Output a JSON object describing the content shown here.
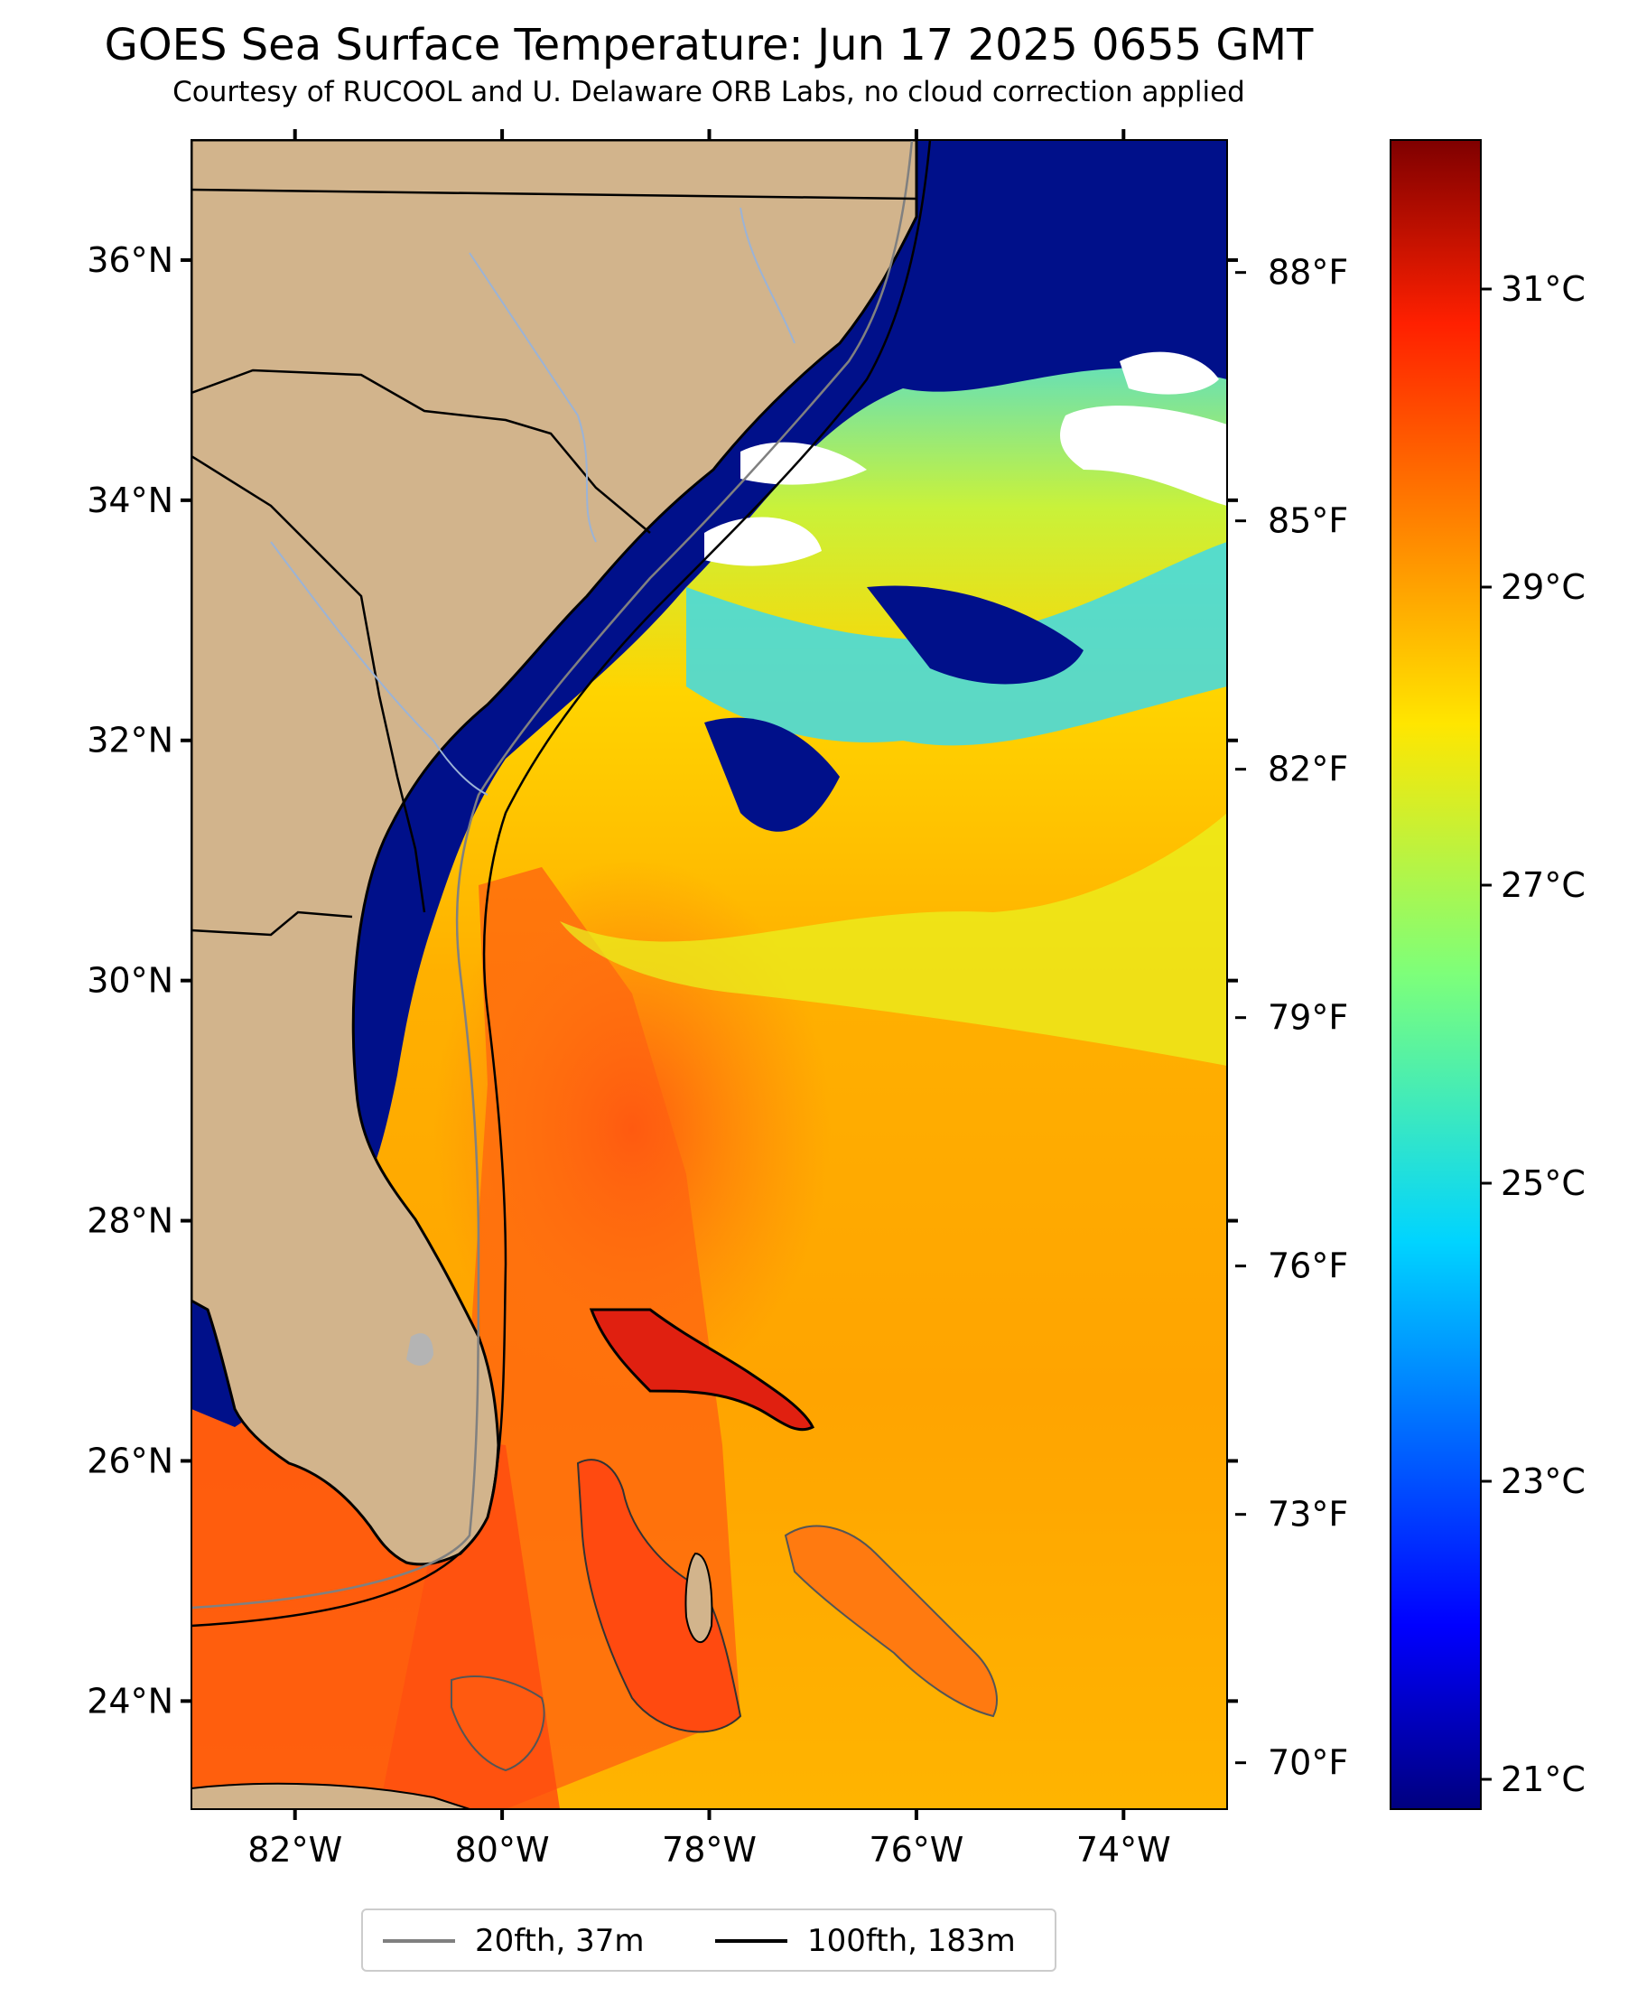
{
  "title": "GOES Sea Surface Temperature: Jun 17 2025 0655 GMT",
  "subtitle": "Courtesy of RUCOOL and U. Delaware ORB Labs, no cloud correction applied",
  "map": {
    "extent": {
      "lon": [
        -83,
        -73
      ],
      "lat": [
        23.1,
        37
      ]
    },
    "lat_ticks": [
      {
        "value": 36,
        "label": "36°N"
      },
      {
        "value": 34,
        "label": "34°N"
      },
      {
        "value": 32,
        "label": "32°N"
      },
      {
        "value": 30,
        "label": "30°N"
      },
      {
        "value": 28,
        "label": "28°N"
      },
      {
        "value": 26,
        "label": "26°N"
      },
      {
        "value": 24,
        "label": "24°N"
      }
    ],
    "lon_ticks": [
      {
        "value": -82,
        "label": "82°W"
      },
      {
        "value": -80,
        "label": "80°W"
      },
      {
        "value": -78,
        "label": "78°W"
      },
      {
        "value": -76,
        "label": "76°W"
      },
      {
        "value": -74,
        "label": "74°W"
      }
    ],
    "land_color": "#d2b48c",
    "cloud_color": "#ffffff"
  },
  "colorbar": {
    "range_c": [
      20.8,
      32.0
    ],
    "celsius_ticks": [
      {
        "value": 31,
        "label": "31°C"
      },
      {
        "value": 29,
        "label": "29°C"
      },
      {
        "value": 27,
        "label": "27°C"
      },
      {
        "value": 25,
        "label": "25°C"
      },
      {
        "value": 23,
        "label": "23°C"
      },
      {
        "value": 21,
        "label": "21°C"
      }
    ],
    "fahrenheit_ticks": [
      {
        "value": 88,
        "label": "88°F"
      },
      {
        "value": 85,
        "label": "85°F"
      },
      {
        "value": 82,
        "label": "82°F"
      },
      {
        "value": 79,
        "label": "79°F"
      },
      {
        "value": 76,
        "label": "76°F"
      },
      {
        "value": 73,
        "label": "73°F"
      },
      {
        "value": 70,
        "label": "70°F"
      }
    ]
  },
  "legend": {
    "items": [
      {
        "label": "20fth, 37m",
        "color": "#808080"
      },
      {
        "label": "100fth, 183m",
        "color": "#000000"
      }
    ]
  }
}
